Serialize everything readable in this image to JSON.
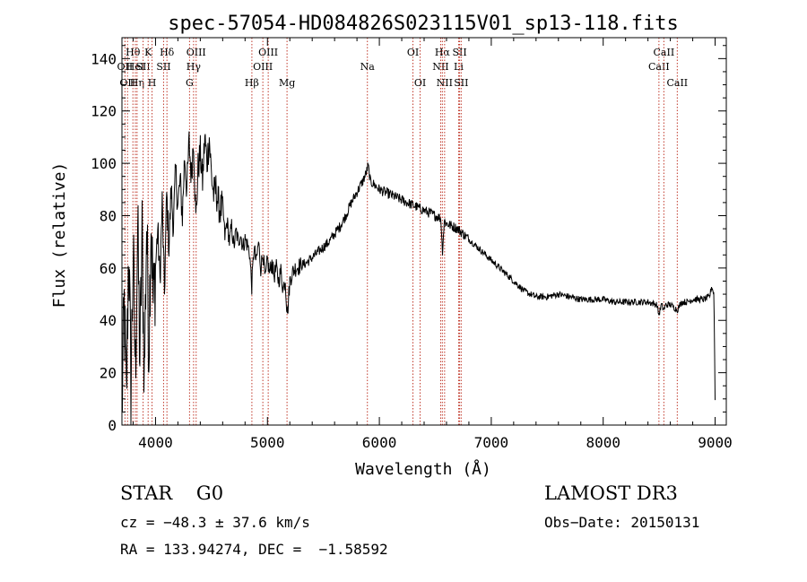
{
  "chart_data": {
    "type": "line",
    "title": "spec-57054-HD084826S023115V01_sp13-118.fits",
    "xlabel": "Wavelength (Å)",
    "ylabel": "Flux (relative)",
    "xlim": [
      3700,
      9100
    ],
    "ylim": [
      0,
      148
    ],
    "xticks": [
      4000,
      5000,
      6000,
      7000,
      8000,
      9000
    ],
    "yticks": [
      0,
      20,
      40,
      60,
      80,
      100,
      120,
      140
    ],
    "grid": false,
    "series": [
      {
        "name": "flux",
        "points": [
          [
            3700,
            5
          ],
          [
            3720,
            45
          ],
          [
            3740,
            8
          ],
          [
            3760,
            70
          ],
          [
            3780,
            15
          ],
          [
            3800,
            65
          ],
          [
            3820,
            20
          ],
          [
            3840,
            75
          ],
          [
            3860,
            25
          ],
          [
            3880,
            72
          ],
          [
            3900,
            18
          ],
          [
            3920,
            78
          ],
          [
            3940,
            30
          ],
          [
            3960,
            82
          ],
          [
            3980,
            45
          ],
          [
            4000,
            60
          ],
          [
            4020,
            75
          ],
          [
            4040,
            55
          ],
          [
            4060,
            85
          ],
          [
            4080,
            50
          ],
          [
            4100,
            88
          ],
          [
            4120,
            68
          ],
          [
            4140,
            90
          ],
          [
            4160,
            76
          ],
          [
            4180,
            97
          ],
          [
            4200,
            84
          ],
          [
            4220,
            93
          ],
          [
            4240,
            80
          ],
          [
            4260,
            103
          ],
          [
            4280,
            90
          ],
          [
            4300,
            108
          ],
          [
            4320,
            95
          ],
          [
            4340,
            110
          ],
          [
            4360,
            78
          ],
          [
            4380,
            98
          ],
          [
            4400,
            104
          ],
          [
            4420,
            93
          ],
          [
            4440,
            110
          ],
          [
            4460,
            100
          ],
          [
            4480,
            110
          ],
          [
            4500,
            95
          ],
          [
            4520,
            88
          ],
          [
            4540,
            90
          ],
          [
            4560,
            85
          ],
          [
            4580,
            82
          ],
          [
            4600,
            84
          ],
          [
            4620,
            72
          ],
          [
            4640,
            78
          ],
          [
            4660,
            70
          ],
          [
            4680,
            76
          ],
          [
            4700,
            68
          ],
          [
            4720,
            74
          ],
          [
            4740,
            70
          ],
          [
            4760,
            73
          ],
          [
            4780,
            68
          ],
          [
            4800,
            71
          ],
          [
            4820,
            69
          ],
          [
            4840,
            66
          ],
          [
            4860,
            53
          ],
          [
            4880,
            68
          ],
          [
            4900,
            62
          ],
          [
            4920,
            70
          ],
          [
            4940,
            60
          ],
          [
            4960,
            66
          ],
          [
            4980,
            55
          ],
          [
            5000,
            63
          ],
          [
            5020,
            58
          ],
          [
            5040,
            62
          ],
          [
            5060,
            57
          ],
          [
            5080,
            60
          ],
          [
            5100,
            55
          ],
          [
            5120,
            59
          ],
          [
            5140,
            52
          ],
          [
            5160,
            56
          ],
          [
            5170,
            47
          ],
          [
            5180,
            43
          ],
          [
            5200,
            55
          ],
          [
            5220,
            58
          ],
          [
            5250,
            60
          ],
          [
            5300,
            61
          ],
          [
            5350,
            62
          ],
          [
            5400,
            64
          ],
          [
            5450,
            66
          ],
          [
            5500,
            68
          ],
          [
            5550,
            70
          ],
          [
            5600,
            73
          ],
          [
            5650,
            76
          ],
          [
            5700,
            80
          ],
          [
            5750,
            85
          ],
          [
            5800,
            89
          ],
          [
            5850,
            93
          ],
          [
            5880,
            96
          ],
          [
            5900,
            99
          ],
          [
            5920,
            93
          ],
          [
            5950,
            92
          ],
          [
            6000,
            90
          ],
          [
            6050,
            89
          ],
          [
            6100,
            88
          ],
          [
            6150,
            87
          ],
          [
            6200,
            86
          ],
          [
            6250,
            85
          ],
          [
            6300,
            84
          ],
          [
            6350,
            83
          ],
          [
            6400,
            82
          ],
          [
            6450,
            81
          ],
          [
            6500,
            80
          ],
          [
            6550,
            79
          ],
          [
            6563,
            66
          ],
          [
            6580,
            78
          ],
          [
            6600,
            77
          ],
          [
            6650,
            76
          ],
          [
            6700,
            75
          ],
          [
            6750,
            73
          ],
          [
            6800,
            71
          ],
          [
            6850,
            69
          ],
          [
            6900,
            67
          ],
          [
            6950,
            65
          ],
          [
            7000,
            63
          ],
          [
            7050,
            61
          ],
          [
            7100,
            59
          ],
          [
            7150,
            57
          ],
          [
            7200,
            55
          ],
          [
            7250,
            53
          ],
          [
            7300,
            51
          ],
          [
            7350,
            50
          ],
          [
            7400,
            49
          ],
          [
            7500,
            49
          ],
          [
            7600,
            50
          ],
          [
            7700,
            49
          ],
          [
            7800,
            48
          ],
          [
            7900,
            48
          ],
          [
            8000,
            48
          ],
          [
            8100,
            47
          ],
          [
            8200,
            47
          ],
          [
            8300,
            47
          ],
          [
            8400,
            47
          ],
          [
            8480,
            46
          ],
          [
            8498,
            42
          ],
          [
            8520,
            46
          ],
          [
            8542,
            44
          ],
          [
            8560,
            46
          ],
          [
            8600,
            46
          ],
          [
            8662,
            44
          ],
          [
            8700,
            47
          ],
          [
            8750,
            47
          ],
          [
            8800,
            48
          ],
          [
            8850,
            48
          ],
          [
            8900,
            48
          ],
          [
            8950,
            49
          ],
          [
            8970,
            53
          ],
          [
            8990,
            50
          ],
          [
            9000,
            10
          ]
        ]
      }
    ],
    "lines": [
      {
        "wave": 3727,
        "label": "OII",
        "row": 2
      },
      {
        "wave": 3750,
        "label": "OII",
        "row": 3
      },
      {
        "wave": 3798,
        "label": "Hθ",
        "row": 1
      },
      {
        "wave": 3820,
        "label": "HeI",
        "row": 2
      },
      {
        "wave": 3835,
        "label": "Hη",
        "row": 3
      },
      {
        "wave": 3889,
        "label": "SII",
        "row": 2
      },
      {
        "wave": 3934,
        "label": "K",
        "row": 1
      },
      {
        "wave": 3969,
        "label": "H",
        "row": 3
      },
      {
        "wave": 4072,
        "label": "SII",
        "row": 2
      },
      {
        "wave": 4102,
        "label": "Hδ",
        "row": 1
      },
      {
        "wave": 4304,
        "label": "G",
        "row": 3
      },
      {
        "wave": 4340,
        "label": "Hγ",
        "row": 2
      },
      {
        "wave": 4363,
        "label": "OIII",
        "row": 1
      },
      {
        "wave": 4861,
        "label": "Hβ",
        "row": 3
      },
      {
        "wave": 4959,
        "label": "OIII",
        "row": 2
      },
      {
        "wave": 5007,
        "label": "OIII",
        "row": 1
      },
      {
        "wave": 5175,
        "label": "Mg",
        "row": 3
      },
      {
        "wave": 5893,
        "label": "Na",
        "row": 2
      },
      {
        "wave": 6300,
        "label": "OI",
        "row": 1
      },
      {
        "wave": 6364,
        "label": "OI",
        "row": 3
      },
      {
        "wave": 6548,
        "label": "NII",
        "row": 2
      },
      {
        "wave": 6563,
        "label": "Hα",
        "row": 1
      },
      {
        "wave": 6583,
        "label": "NII",
        "row": 3
      },
      {
        "wave": 6708,
        "label": "Li",
        "row": 2
      },
      {
        "wave": 6717,
        "label": "SII",
        "row": 1
      },
      {
        "wave": 6731,
        "label": "SII",
        "row": 3
      },
      {
        "wave": 8498,
        "label": "CaII",
        "row": 2
      },
      {
        "wave": 8542,
        "label": "CaII",
        "row": 1
      },
      {
        "wave": 8662,
        "label": "CaII",
        "row": 3
      }
    ]
  },
  "info": {
    "object_class": "STAR    G0",
    "survey": "LAMOST DR3",
    "cz": "cz = −48.3 ± 37.6 km/s",
    "obs_date": "Obs−Date: 20150131",
    "radec": "RA = 133.94274, DEC =  −1.58592"
  },
  "colors": {
    "spectrum": "#000000",
    "line_marker": "#c0392b",
    "axis": "#000000",
    "background": "#ffffff"
  }
}
